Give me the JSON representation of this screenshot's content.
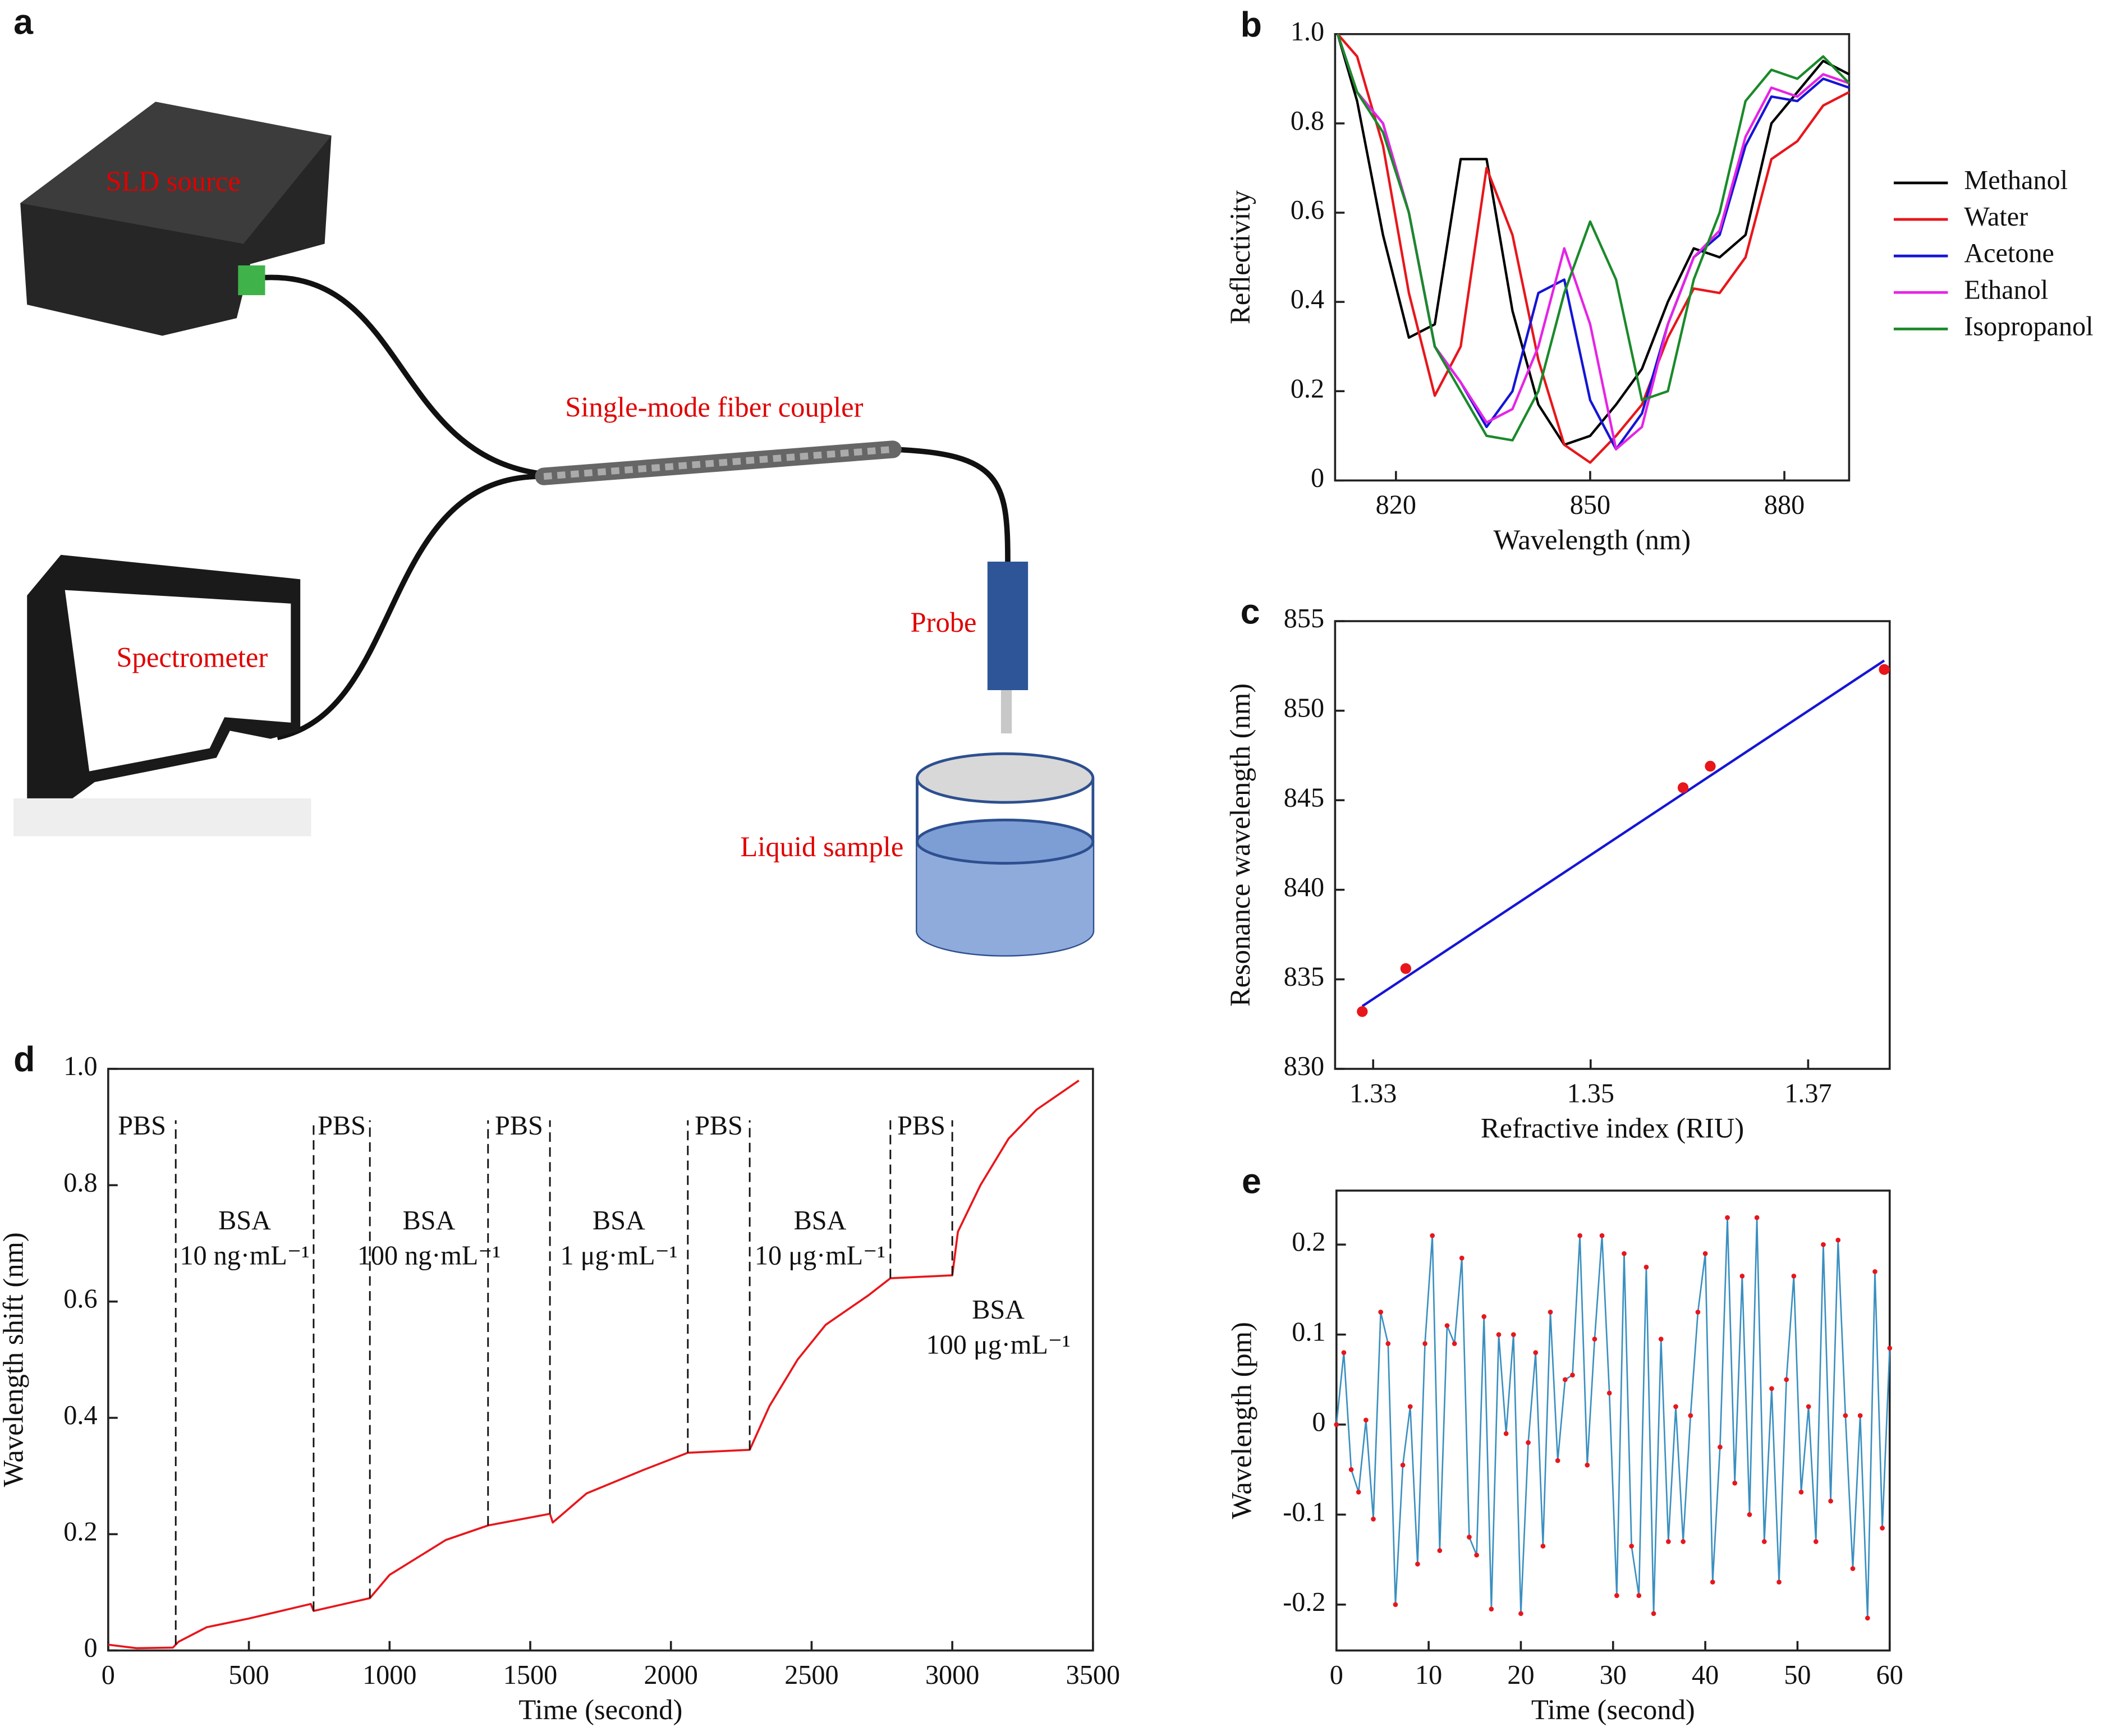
{
  "diagram": {
    "panel_label": "a",
    "labels": [
      "SLD source",
      "Single-mode fiber coupler",
      "Spectrometer",
      "Probe",
      "Liquid sample"
    ]
  },
  "chart_data": [
    {
      "type": "line",
      "panel_label": "b",
      "xlabel": "Wavelength (nm)",
      "ylabel": "Reflectivity",
      "xlim": [
        810.6,
        890
      ],
      "xticks": [
        820,
        850,
        880
      ],
      "ylim": [
        0,
        1
      ],
      "yticks": [
        0,
        0.2,
        0.4,
        0.6,
        0.8,
        {
          "value": 1,
          "label": "1.0"
        }
      ],
      "x": [
        811,
        814,
        818,
        822,
        826,
        830,
        834,
        838,
        842,
        846,
        850,
        854,
        858,
        862,
        866,
        870,
        874,
        878,
        882,
        886,
        890
      ],
      "series": [
        {
          "name": "Methanol",
          "color": "#000000",
          "values": [
            1.0,
            0.85,
            0.55,
            0.32,
            0.35,
            0.72,
            0.72,
            0.38,
            0.17,
            0.08,
            0.1,
            0.17,
            0.25,
            0.4,
            0.52,
            0.5,
            0.55,
            0.8,
            0.87,
            0.94,
            0.91
          ]
        },
        {
          "name": "Water",
          "color": "#e8161b",
          "values": [
            1.0,
            0.95,
            0.75,
            0.42,
            0.19,
            0.3,
            0.7,
            0.55,
            0.27,
            0.08,
            0.04,
            0.1,
            0.17,
            0.32,
            0.43,
            0.42,
            0.5,
            0.72,
            0.76,
            0.84,
            0.87
          ]
        },
        {
          "name": "Acetone",
          "color": "#1515d6",
          "values": [
            1.0,
            0.87,
            0.8,
            0.6,
            0.3,
            0.22,
            0.12,
            0.2,
            0.42,
            0.45,
            0.18,
            0.07,
            0.15,
            0.35,
            0.5,
            0.55,
            0.75,
            0.86,
            0.85,
            0.9,
            0.88
          ]
        },
        {
          "name": "Ethanol",
          "color": "#e524e5",
          "values": [
            1.0,
            0.87,
            0.8,
            0.6,
            0.3,
            0.22,
            0.13,
            0.16,
            0.3,
            0.52,
            0.35,
            0.07,
            0.12,
            0.35,
            0.5,
            0.56,
            0.77,
            0.88,
            0.86,
            0.91,
            0.89
          ]
        },
        {
          "name": "Isopropanol",
          "color": "#1a8a2a",
          "values": [
            1.0,
            0.87,
            0.78,
            0.6,
            0.3,
            0.2,
            0.1,
            0.09,
            0.2,
            0.42,
            0.58,
            0.45,
            0.18,
            0.2,
            0.45,
            0.6,
            0.85,
            0.92,
            0.9,
            0.95,
            0.89
          ]
        }
      ]
    },
    {
      "type": "scatter",
      "panel_label": "c",
      "xlabel": "Refractive index (RIU)",
      "ylabel": "Resonance wavelength (nm)",
      "xlim": [
        1.3265,
        1.3775
      ],
      "xticks": [
        1.33,
        1.35,
        1.37
      ],
      "ylim": [
        830,
        855
      ],
      "yticks": [
        830,
        835,
        840,
        845,
        850,
        855
      ],
      "x": [
        1.329,
        1.333,
        1.3585,
        1.361,
        1.377
      ],
      "values": [
        833.2,
        835.6,
        845.7,
        846.9,
        852.3
      ],
      "color": "#e8161b",
      "fit": {
        "x": [
          1.329,
          1.377
        ],
        "values": [
          833.5,
          852.8
        ],
        "color": "#1515d6"
      }
    },
    {
      "type": "line",
      "panel_label": "d",
      "xlabel": "Time (second)",
      "ylabel": "Wavelength shift (nm)",
      "xlim": [
        0,
        3500
      ],
      "xticks": [
        0,
        500,
        1000,
        1500,
        2000,
        2500,
        3000,
        3500
      ],
      "ylim": [
        0,
        1
      ],
      "yticks": [
        0,
        0.2,
        0.4,
        0.6,
        0.8,
        {
          "value": 1,
          "label": "1.0"
        }
      ],
      "x": [
        0,
        100,
        230,
        250,
        350,
        500,
        720,
        730,
        930,
        1000,
        1100,
        1200,
        1350,
        1570,
        1580,
        1700,
        1900,
        2060,
        2280,
        2350,
        2450,
        2550,
        2700,
        2780,
        3000,
        3020,
        3100,
        3200,
        3300,
        3450
      ],
      "values": [
        0.01,
        0.004,
        0.005,
        0.015,
        0.04,
        0.055,
        0.08,
        0.068,
        0.09,
        0.13,
        0.16,
        0.19,
        0.215,
        0.235,
        0.22,
        0.27,
        0.31,
        0.34,
        0.345,
        0.42,
        0.5,
        0.56,
        0.61,
        0.64,
        0.645,
        0.72,
        0.8,
        0.88,
        0.93,
        0.98
      ],
      "color": "#e8161b",
      "phase_boundaries": [
        240,
        730,
        930,
        1350,
        1570,
        2060,
        2280,
        2780,
        3000
      ],
      "phases": [
        {
          "label": "PBS"
        },
        {
          "label": "BSA",
          "concentration": "10 ng·mL⁻¹"
        },
        {
          "label": "PBS"
        },
        {
          "label": "BSA",
          "concentration": "100 ng·mL⁻¹"
        },
        {
          "label": "PBS"
        },
        {
          "label": "BSA",
          "concentration": "1 μg·mL⁻¹"
        },
        {
          "label": "PBS"
        },
        {
          "label": "BSA",
          "concentration": "10 μg·mL⁻¹"
        },
        {
          "label": "PBS"
        },
        {
          "label": "BSA",
          "concentration": "100 μg·mL⁻¹"
        }
      ]
    },
    {
      "type": "line",
      "panel_label": "e",
      "xlabel": "Time (second)",
      "ylabel": "Wavelength (pm)",
      "xlim": [
        0,
        60
      ],
      "xticks": [
        0,
        10,
        20,
        30,
        40,
        50,
        60
      ],
      "ylim": [
        -0.251,
        0.26
      ],
      "yticks": [
        -0.2,
        -0.1,
        0,
        0.1,
        0.2
      ],
      "color": "#3a8fc0",
      "marker_color": "#e8161b",
      "x": [
        0,
        0.8,
        1.6,
        2.4,
        3.2,
        4,
        4.8,
        5.6,
        6.4,
        7.2,
        8,
        8.8,
        9.6,
        10.4,
        11.2,
        12,
        12.8,
        13.6,
        14.4,
        15.2,
        16,
        16.8,
        17.6,
        18.4,
        19.2,
        20,
        20.8,
        21.6,
        22.4,
        23.2,
        24,
        24.8,
        25.6,
        26.4,
        27.2,
        28,
        28.8,
        29.6,
        30.4,
        31.2,
        32,
        32.8,
        33.6,
        34.4,
        35.2,
        36,
        36.8,
        37.6,
        38.4,
        39.2,
        40,
        40.8,
        41.6,
        42.4,
        43.2,
        44,
        44.8,
        45.6,
        46.4,
        47.2,
        48,
        48.8,
        49.6,
        50.4,
        51.2,
        52,
        52.8,
        53.6,
        54.4,
        55.2,
        56,
        56.8,
        57.6,
        58.4,
        59.2,
        60
      ],
      "values": [
        0,
        0.08,
        -0.05,
        -0.075,
        0.005,
        -0.105,
        0.125,
        0.09,
        -0.2,
        -0.045,
        0.02,
        -0.155,
        0.09,
        0.21,
        -0.14,
        0.11,
        0.09,
        0.185,
        -0.125,
        -0.145,
        0.12,
        -0.205,
        0.1,
        -0.01,
        0.1,
        -0.21,
        -0.02,
        0.08,
        -0.135,
        0.125,
        -0.04,
        0.05,
        0.055,
        0.21,
        -0.045,
        0.095,
        0.21,
        0.035,
        -0.19,
        0.19,
        -0.135,
        -0.19,
        0.175,
        -0.21,
        0.095,
        -0.13,
        0.02,
        -0.13,
        0.01,
        0.125,
        0.19,
        -0.175,
        -0.025,
        0.23,
        -0.065,
        0.165,
        -0.1,
        0.23,
        -0.13,
        0.04,
        -0.175,
        0.05,
        0.165,
        -0.075,
        0.02,
        -0.13,
        0.2,
        -0.085,
        0.205,
        0.01,
        -0.16,
        0.01,
        -0.215,
        0.17,
        -0.115,
        0.085
      ]
    }
  ]
}
